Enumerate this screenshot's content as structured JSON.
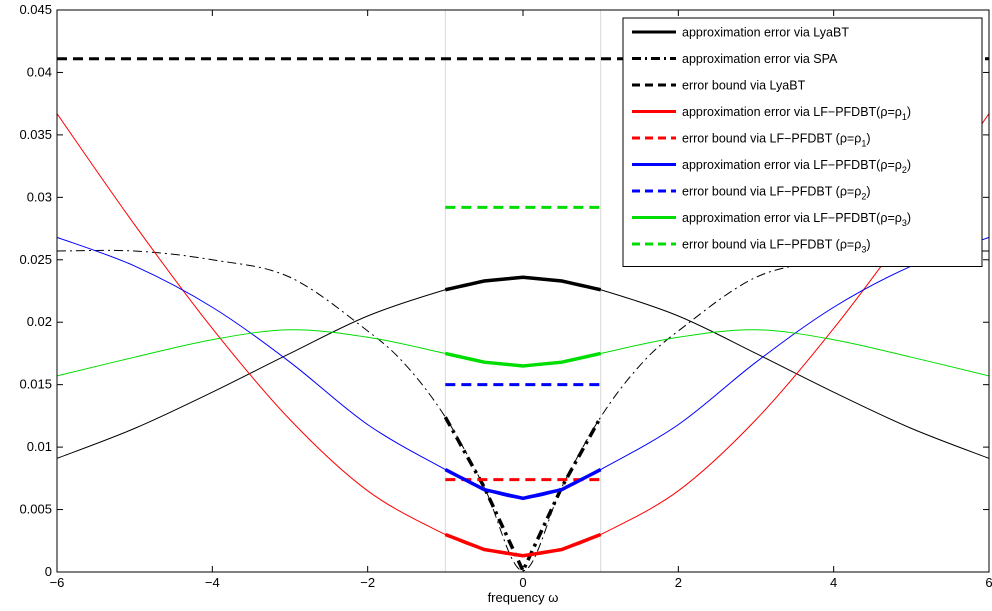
{
  "chart_data": {
    "type": "line",
    "title": "",
    "xlabel": "frequency ω",
    "ylabel": "",
    "xlim": [
      -6,
      6
    ],
    "ylim": [
      0,
      0.045
    ],
    "xticks": [
      -6,
      -4,
      -2,
      0,
      2,
      4,
      6
    ],
    "xtick_labels": [
      "−6",
      "−4",
      "−2",
      "0",
      "2",
      "4",
      "6"
    ],
    "yticks": [
      0,
      0.005,
      0.01,
      0.015,
      0.02,
      0.025,
      0.03,
      0.035,
      0.04,
      0.045
    ],
    "ytick_labels": [
      "0",
      "0.005",
      "0.01",
      "0.015",
      "0.02",
      "0.025",
      "0.03",
      "0.035",
      "0.04",
      "0.045"
    ],
    "grid": false,
    "legend_position": "top-right",
    "band_bounds": [
      -1,
      1
    ],
    "band_color": "#d9d9d9",
    "series": [
      {
        "name": "approximation error via LyaBT",
        "color": "#000000",
        "style": "solid",
        "x": [
          -6,
          -5,
          -4,
          -3,
          -2,
          -1,
          -0.5,
          0,
          0.5,
          1,
          2,
          3,
          4,
          5,
          6
        ],
        "y": [
          0.0091,
          0.0115,
          0.0144,
          0.0175,
          0.0205,
          0.0226,
          0.0233,
          0.0236,
          0.0233,
          0.0226,
          0.0205,
          0.0175,
          0.0144,
          0.0115,
          0.0091
        ]
      },
      {
        "name": "approximation error via SPA",
        "color": "#000000",
        "style": "dashdot",
        "x": [
          -6,
          -5,
          -4,
          -3,
          -2,
          -1.5,
          -1,
          -0.5,
          0,
          0.5,
          1,
          1.5,
          2,
          3,
          4,
          5,
          6
        ],
        "y": [
          0.0257,
          0.0257,
          0.025,
          0.0236,
          0.0193,
          0.0165,
          0.0124,
          0.0068,
          0.0001,
          0.0068,
          0.0124,
          0.0165,
          0.0193,
          0.0236,
          0.025,
          0.0257,
          0.0257
        ]
      },
      {
        "name": "error bound via LyaBT",
        "color": "#000000",
        "style": "dashed",
        "x": [
          -6,
          6
        ],
        "y": [
          0.0411,
          0.0411
        ]
      },
      {
        "name": "approximation error via LF−PFDBT(ρ=ρ",
        "name_sub": "1",
        "name_tail": ")",
        "color": "#ff0000",
        "style": "solid",
        "x": [
          -6,
          -5,
          -4,
          -3,
          -2,
          -1,
          -0.5,
          0,
          0.5,
          1,
          2,
          3,
          4,
          5,
          6
        ],
        "y": [
          0.0367,
          0.0278,
          0.0195,
          0.0122,
          0.0065,
          0.003,
          0.0018,
          0.0013,
          0.0018,
          0.003,
          0.0065,
          0.0122,
          0.0195,
          0.0278,
          0.0367
        ]
      },
      {
        "name": "error bound via LF−PFDBT (ρ=ρ",
        "name_sub": "1",
        "name_tail": ")",
        "color": "#ff0000",
        "style": "dashed",
        "x": [
          -1,
          1
        ],
        "y": [
          0.0074,
          0.0074
        ]
      },
      {
        "name": "approximation error via LF−PFDBT(ρ=ρ",
        "name_sub": "2",
        "name_tail": ")",
        "color": "#0000ff",
        "style": "solid",
        "x": [
          -6,
          -5,
          -4,
          -3,
          -2,
          -1,
          -0.5,
          0,
          0.5,
          1,
          2,
          3,
          4,
          5,
          6
        ],
        "y": [
          0.0268,
          0.0245,
          0.0212,
          0.0168,
          0.0118,
          0.0082,
          0.0066,
          0.0059,
          0.0066,
          0.0082,
          0.0118,
          0.0168,
          0.0212,
          0.0245,
          0.0268
        ]
      },
      {
        "name": "error bound via LF−PFDBT (ρ=ρ",
        "name_sub": "2",
        "name_tail": ")",
        "color": "#0000ff",
        "style": "dashed",
        "x": [
          -1,
          1
        ],
        "y": [
          0.015,
          0.015
        ]
      },
      {
        "name": "approximation error via LF−PFDBT(ρ=ρ",
        "name_sub": "3",
        "name_tail": ")",
        "color": "#00dd00",
        "style": "solid",
        "x": [
          -6,
          -5,
          -4,
          -3,
          -2,
          -1,
          -0.5,
          0,
          0.5,
          1,
          2,
          3,
          4,
          5,
          6
        ],
        "y": [
          0.0157,
          0.0172,
          0.0186,
          0.0194,
          0.0188,
          0.0175,
          0.0168,
          0.0165,
          0.0168,
          0.0175,
          0.0188,
          0.0194,
          0.0186,
          0.0172,
          0.0157
        ]
      },
      {
        "name": "error bound via LF−PFDBT (ρ=ρ",
        "name_sub": "3",
        "name_tail": ")",
        "color": "#00dd00",
        "style": "dashed",
        "x": [
          -1,
          1
        ],
        "y": [
          0.0292,
          0.0292
        ]
      }
    ]
  }
}
